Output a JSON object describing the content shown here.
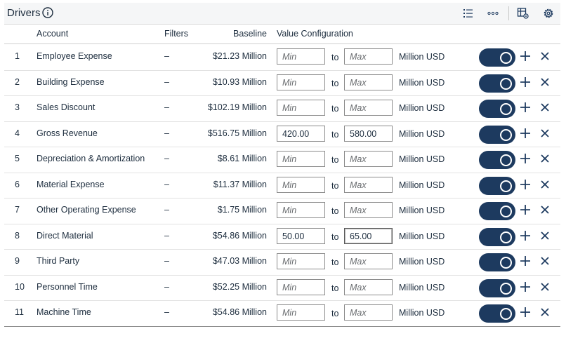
{
  "header": {
    "title": "Drivers"
  },
  "columns": {
    "account": "Account",
    "filters": "Filters",
    "baseline": "Baseline",
    "value_configuration": "Value Configuration"
  },
  "rows": [
    {
      "idx": "1",
      "account": "Employee Expense",
      "filters": "–",
      "baseline": "$21.23 Million",
      "min": "",
      "max": "",
      "to": "to",
      "unit": "Million USD"
    },
    {
      "idx": "2",
      "account": "Building Expense",
      "filters": "–",
      "baseline": "$10.93 Million",
      "min": "",
      "max": "",
      "to": "to",
      "unit": "Million USD"
    },
    {
      "idx": "3",
      "account": "Sales Discount",
      "filters": "–",
      "baseline": "$102.19 Million",
      "min": "",
      "max": "",
      "to": "to",
      "unit": "Million USD"
    },
    {
      "idx": "4",
      "account": "Gross Revenue",
      "filters": "–",
      "baseline": "$516.75 Million",
      "min": "420.00",
      "max": "580.00",
      "to": "to",
      "unit": "Million USD"
    },
    {
      "idx": "5",
      "account": "Depreciation & Amortization",
      "filters": "–",
      "baseline": "$8.61 Million",
      "min": "",
      "max": "",
      "to": "to",
      "unit": "Million USD"
    },
    {
      "idx": "6",
      "account": "Material Expense",
      "filters": "–",
      "baseline": "$11.37 Million",
      "min": "",
      "max": "",
      "to": "to",
      "unit": "Million USD"
    },
    {
      "idx": "7",
      "account": "Other Operating Expense",
      "filters": "–",
      "baseline": "$1.75 Million",
      "min": "",
      "max": "",
      "to": "to",
      "unit": "Million USD"
    },
    {
      "idx": "8",
      "account": "Direct Material",
      "filters": "–",
      "baseline": "$54.86 Million",
      "min": "50.00",
      "max": "65.00",
      "to": "to",
      "unit": "Million USD"
    },
    {
      "idx": "9",
      "account": "Third Party",
      "filters": "–",
      "baseline": "$47.03 Million",
      "min": "",
      "max": "",
      "to": "to",
      "unit": "Million USD"
    },
    {
      "idx": "10",
      "account": "Personnel Time",
      "filters": "–",
      "baseline": "$52.25 Million",
      "min": "",
      "max": "",
      "to": "to",
      "unit": "Million USD"
    },
    {
      "idx": "11",
      "account": "Machine Time",
      "filters": "–",
      "baseline": "$54.86 Million",
      "min": "",
      "max": "",
      "to": "to",
      "unit": "Million USD"
    }
  ],
  "placeholders": {
    "min": "Min",
    "max": "Max"
  },
  "colors": {
    "toggle_on": "#1d3a5f",
    "icon": "#1d3a5f"
  },
  "icons": {
    "header": [
      "info-icon",
      "list-settings-icon",
      "overflow-icon",
      "table-settings-icon",
      "gear-icon"
    ],
    "row": [
      "toggle",
      "plus-icon",
      "close-icon"
    ]
  }
}
